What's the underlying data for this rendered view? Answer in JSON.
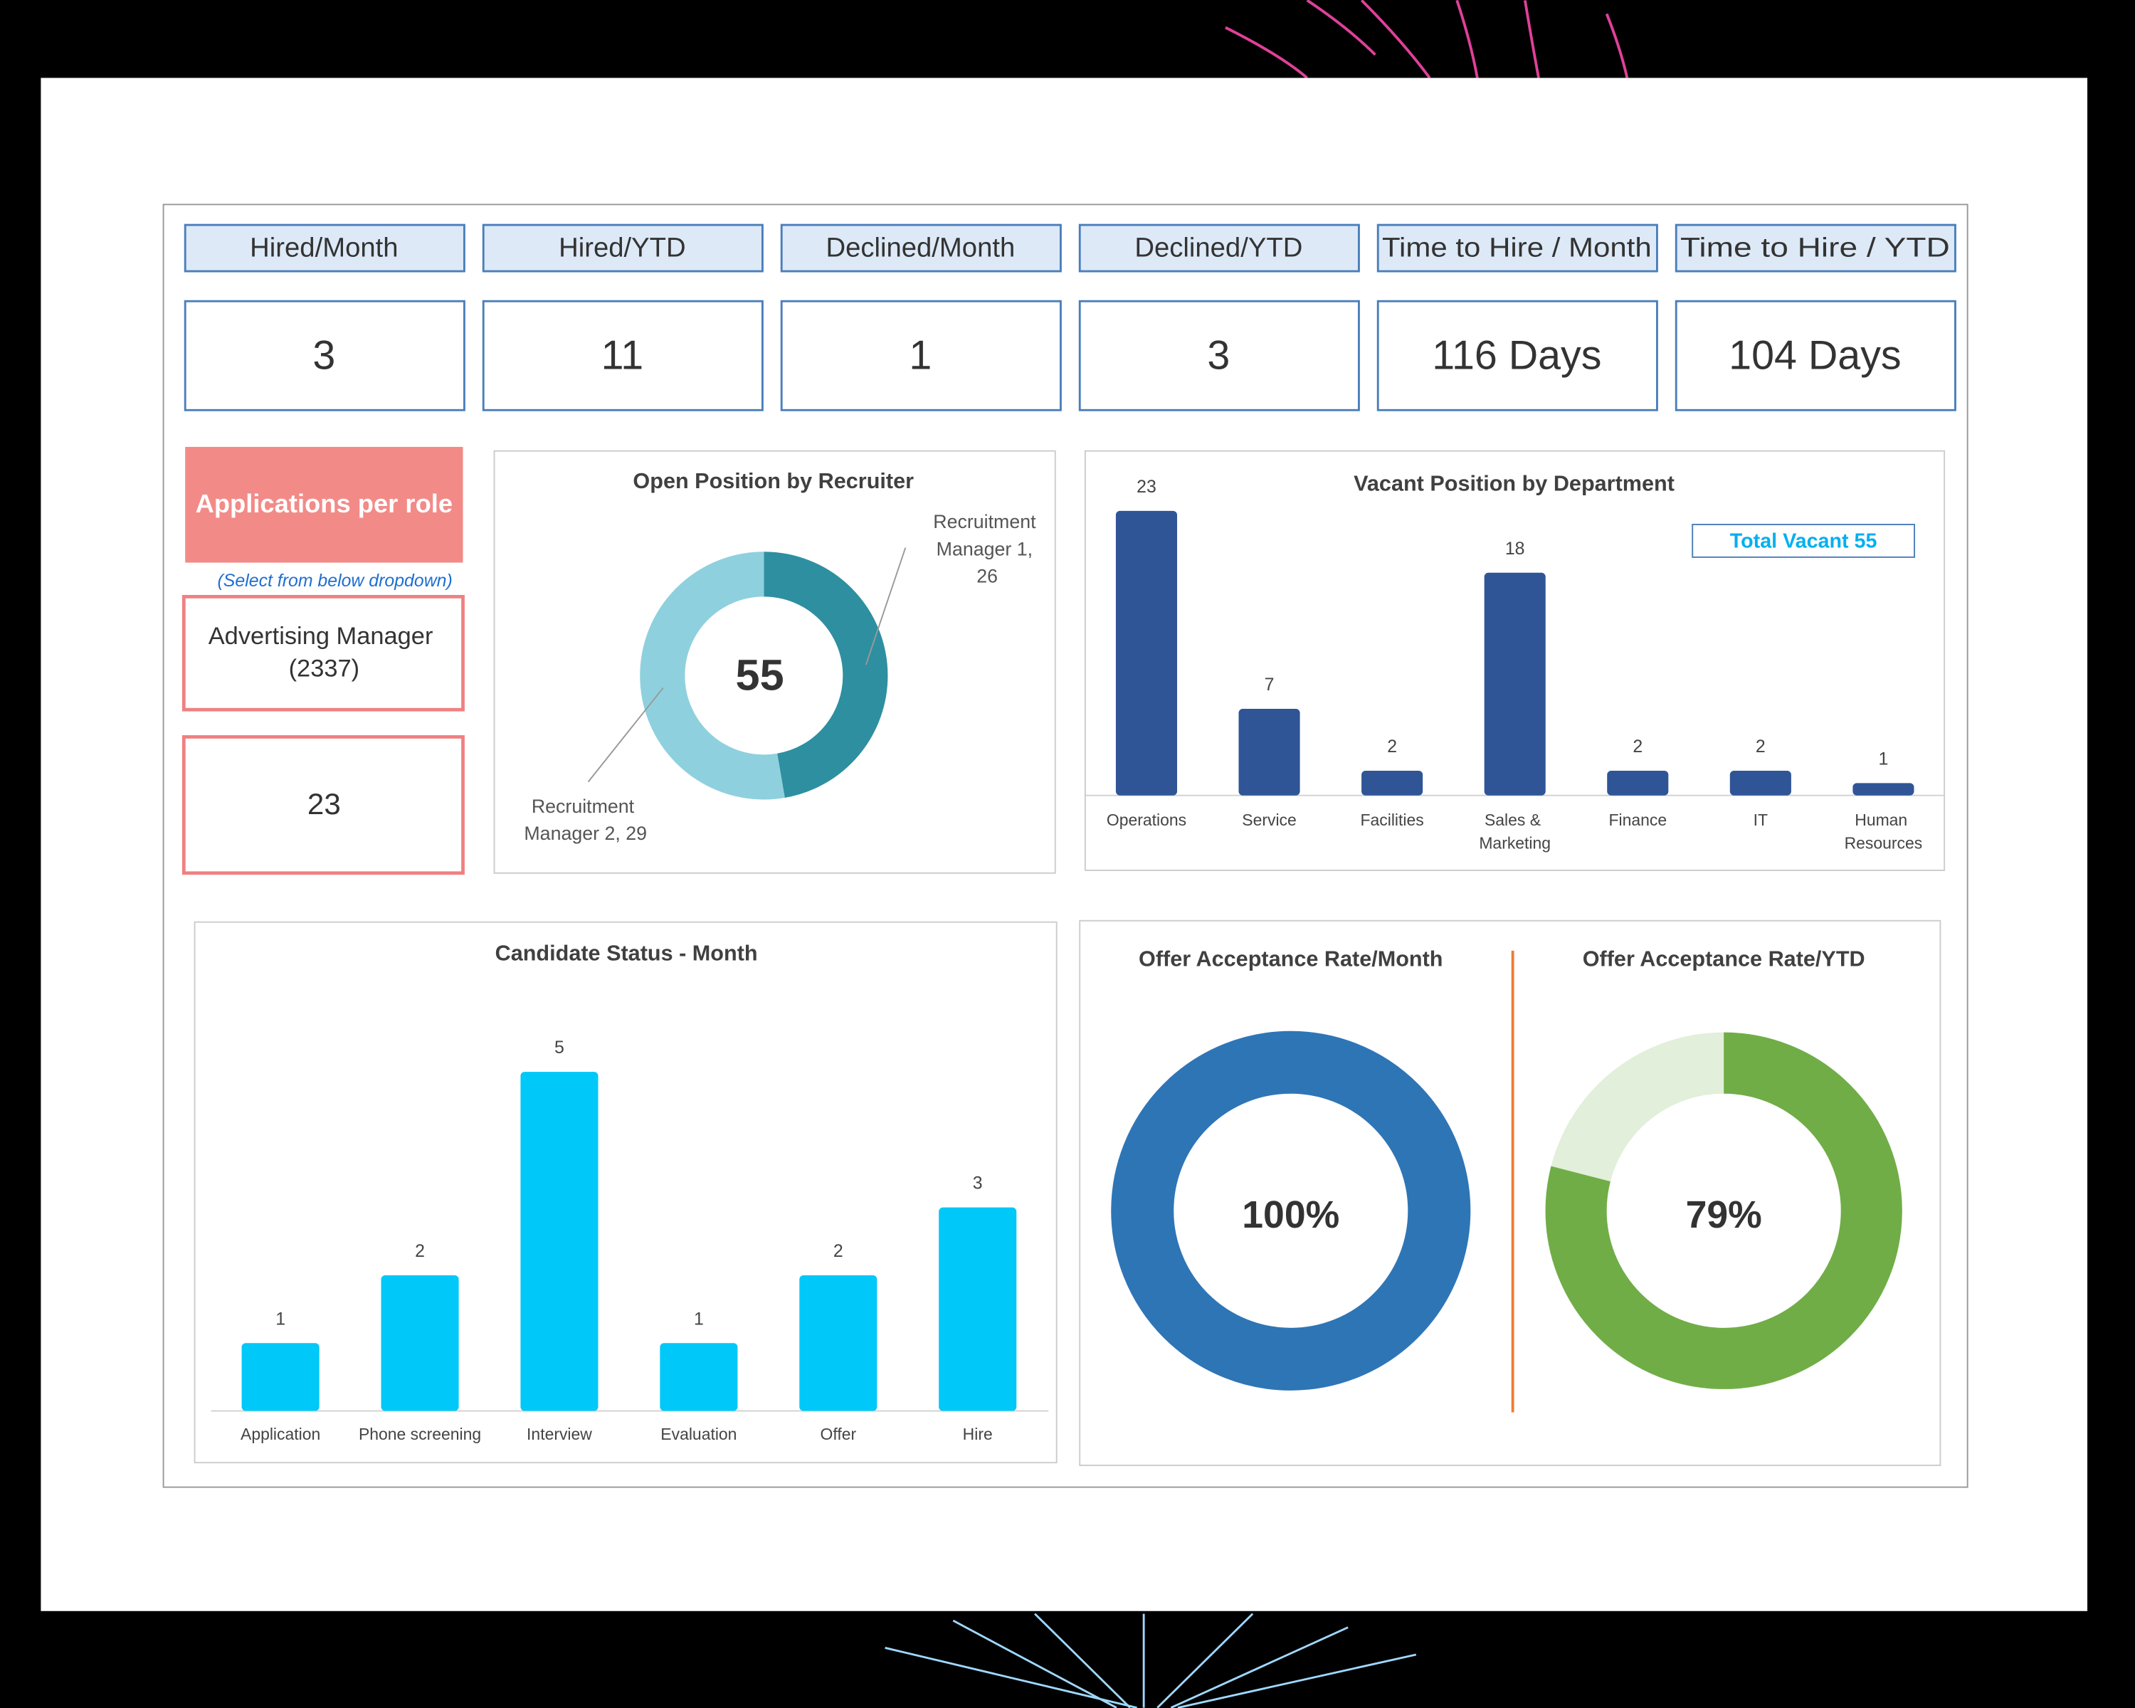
{
  "kpis": [
    {
      "label": "Hired/Month",
      "value": 3
    },
    {
      "label": "Hired/YTD",
      "value": 11
    },
    {
      "label": "Declined/Month",
      "value": 1
    },
    {
      "label": "Declined/YTD",
      "value": 3
    },
    {
      "label": "Time to Hire / Month",
      "value": "116 Days"
    },
    {
      "label": "Time to Hire / YTD",
      "value": "104 Days"
    }
  ],
  "applications": {
    "title": "Applications per role",
    "hint": "(Select from below dropdown)",
    "role": "Advertising Manager (2337)",
    "value": 23
  },
  "chart_data": [
    {
      "type": "donut",
      "title": "Open Position by Recruiter",
      "categories": [
        "Recruitment Manager 1",
        "Recruitment Manager 2"
      ],
      "values": [
        26,
        29
      ],
      "value_labels": [
        "Recruitment Manager 1, 26",
        "Recruitment Manager 2, 29"
      ],
      "colors": [
        "#2e8fa0",
        "#8fd0de"
      ],
      "total": 55
    },
    {
      "type": "bar",
      "title": "Vacant Position by Department",
      "categories": [
        "Operations",
        "Service",
        "Facilities",
        "Sales & Marketing",
        "Finance",
        "IT",
        "Human Resources"
      ],
      "values": [
        23,
        7,
        2,
        18,
        2,
        2,
        1
      ],
      "color": "#2f5597",
      "annotation": "Total Vacant 55"
    },
    {
      "type": "bar",
      "title": "Candidate Status - Month",
      "categories": [
        "Application",
        "Phone screening",
        "Interview",
        "Evaluation",
        "Offer",
        "Hire"
      ],
      "values": [
        1,
        2,
        5,
        1,
        2,
        3
      ],
      "color": "#00c8f8"
    },
    {
      "type": "gauge",
      "title": "Offer Acceptance Rate/Month",
      "values": [
        100
      ],
      "value_labels": [
        "100%"
      ],
      "color": "#2e75b6",
      "track_color": "#dbe7f4"
    },
    {
      "type": "gauge",
      "title": "Offer Acceptance Rate/YTD",
      "values": [
        79
      ],
      "value_labels": [
        "79%"
      ],
      "color": "#70ad47",
      "track_color": "#e2efda"
    }
  ]
}
